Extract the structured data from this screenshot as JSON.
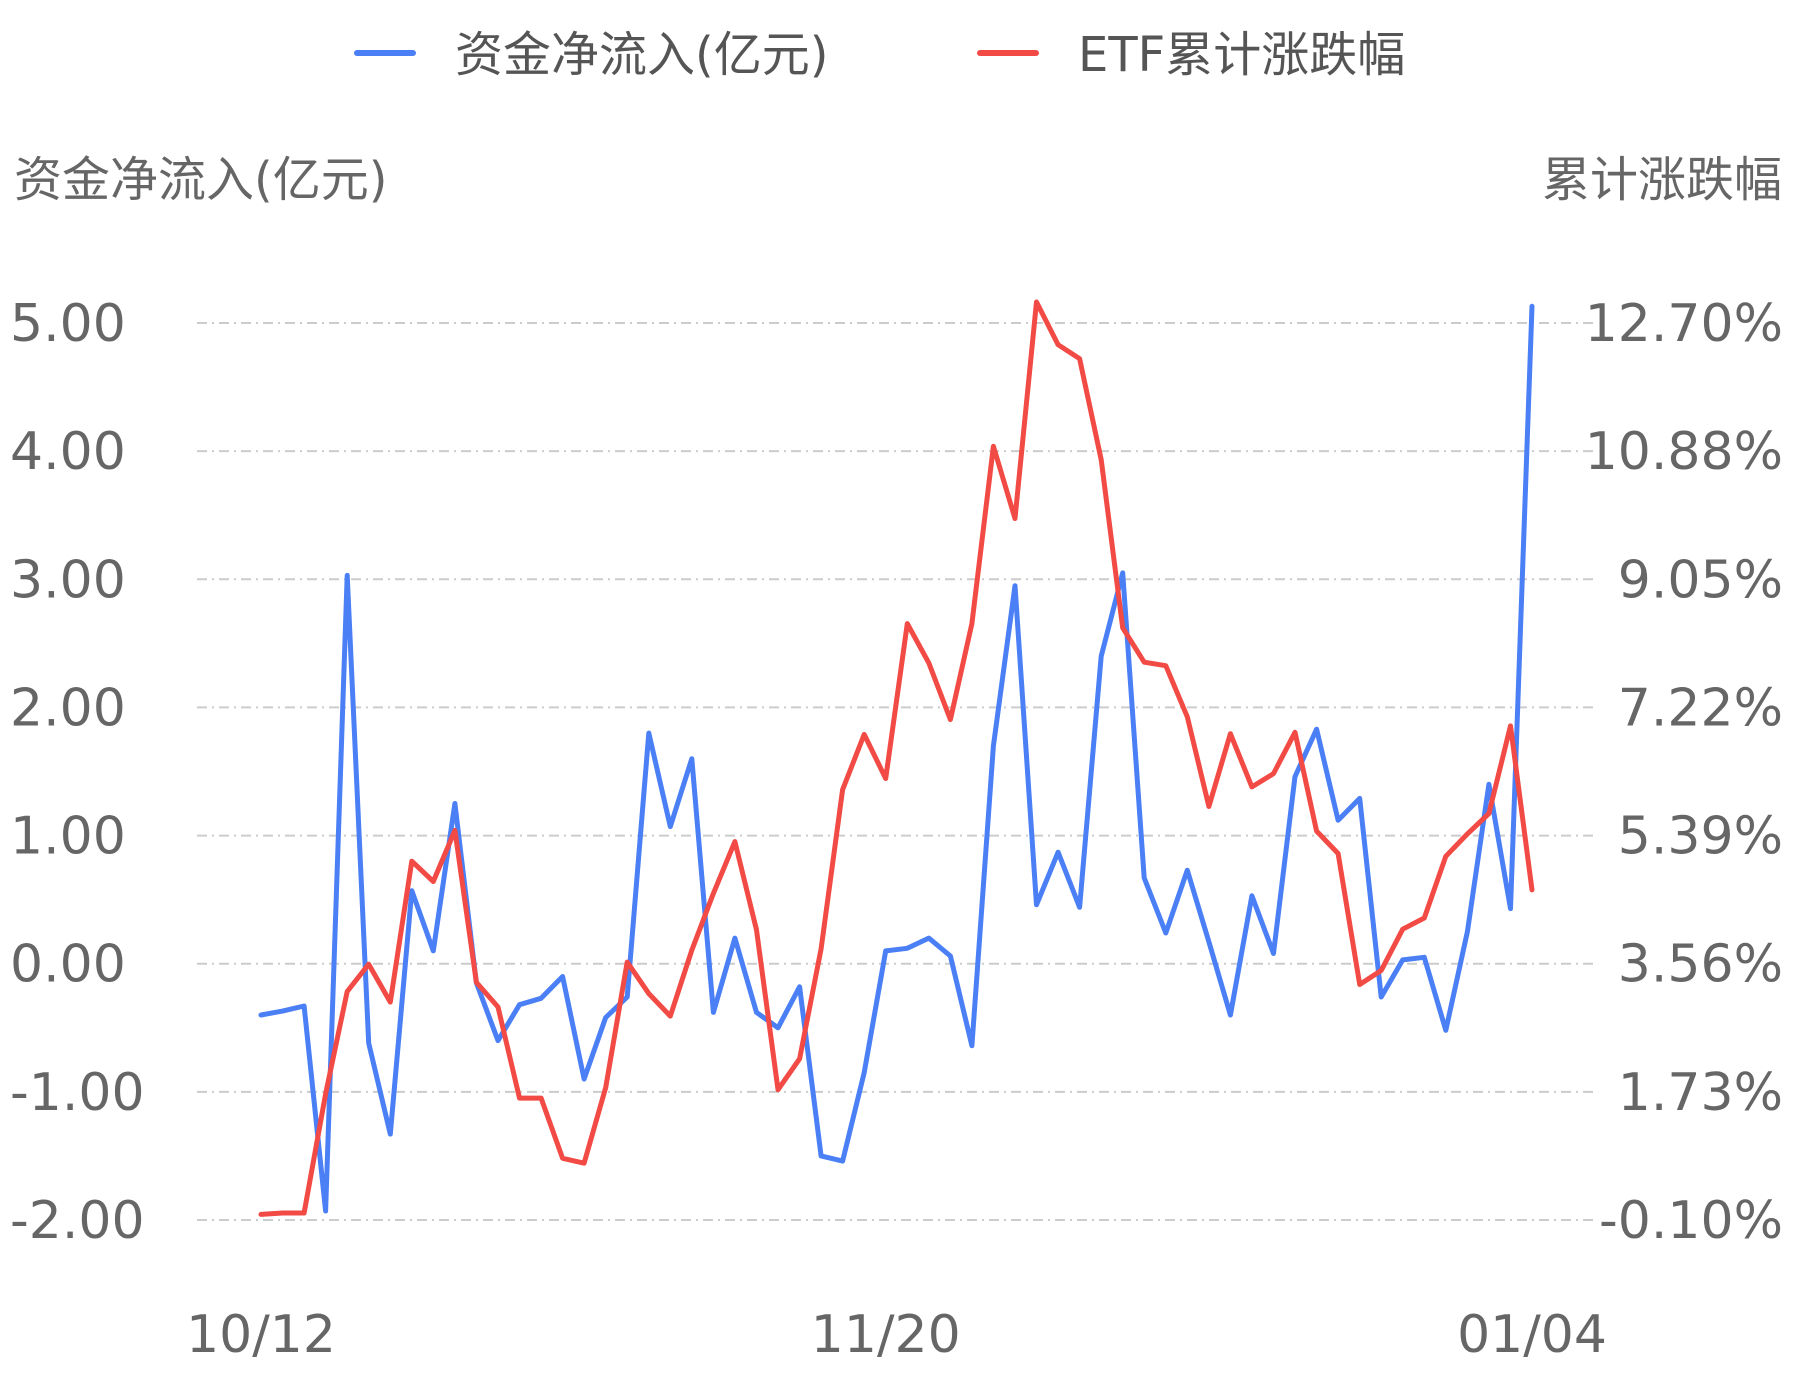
{
  "chart_data": {
    "type": "line",
    "dual_axis": true,
    "legend": {
      "position": "top-center",
      "entries": [
        {
          "name": "资金净流入(亿元)",
          "color": "#4a7ff5"
        },
        {
          "name": "ETF累计涨跌幅",
          "color": "#f24a44"
        }
      ]
    },
    "left_axis": {
      "label": "资金净流入(亿元)",
      "ticks": [
        "5.00",
        "4.00",
        "3.00",
        "2.00",
        "1.00",
        "0.00",
        "-1.00",
        "-2.00"
      ],
      "range": [
        -2.0,
        5.0
      ]
    },
    "right_axis": {
      "label": "累计涨跌幅",
      "ticks": [
        "12.70%",
        "10.88%",
        "9.05%",
        "7.22%",
        "5.39%",
        "3.56%",
        "1.73%",
        "-0.10%"
      ],
      "range": [
        -0.1,
        12.7
      ]
    },
    "x_tick_labels": [
      "10/12",
      "11/20",
      "01/04"
    ],
    "grid": true,
    "series": [
      {
        "name": "资金净流入(亿元)",
        "axis": "left",
        "color": "#4a7ff5",
        "values": [
          -0.4,
          -0.37,
          -0.33,
          -1.93,
          3.03,
          -0.62,
          -1.33,
          0.57,
          0.1,
          1.25,
          -0.15,
          -0.6,
          -0.32,
          -0.27,
          -0.1,
          -0.9,
          -0.42,
          -0.26,
          1.8,
          1.07,
          1.6,
          -0.38,
          0.2,
          -0.38,
          -0.5,
          -0.18,
          -1.5,
          -1.54,
          -0.85,
          0.1,
          0.12,
          0.2,
          0.06,
          -0.64,
          1.7,
          2.95,
          0.46,
          0.87,
          0.44,
          2.4,
          3.05,
          0.67,
          0.24,
          0.73,
          0.17,
          -0.4,
          0.53,
          0.08,
          1.46,
          1.83,
          1.12,
          1.29,
          -0.26,
          0.03,
          0.05,
          -0.52,
          0.25,
          1.4,
          0.43,
          5.13
        ]
      },
      {
        "name": "ETF累计涨跌幅",
        "axis": "right",
        "color": "#f24a44",
        "values": [
          -0.02,
          0.0,
          0.0,
          1.7,
          3.16,
          3.55,
          3.01,
          5.02,
          4.73,
          5.46,
          3.29,
          2.94,
          1.64,
          1.64,
          0.78,
          0.71,
          1.79,
          3.58,
          3.13,
          2.81,
          3.75,
          4.56,
          5.3,
          4.04,
          1.76,
          2.2,
          3.77,
          6.04,
          6.83,
          6.2,
          8.41,
          7.85,
          7.04,
          8.41,
          10.94,
          9.91,
          13.0,
          12.39,
          12.19,
          10.75,
          8.35,
          7.86,
          7.81,
          7.08,
          5.8,
          6.84,
          6.08,
          6.27,
          6.86,
          5.45,
          5.13,
          3.26,
          3.46,
          4.05,
          4.21,
          5.09,
          5.41,
          5.7,
          6.95,
          4.61
        ]
      }
    ]
  }
}
